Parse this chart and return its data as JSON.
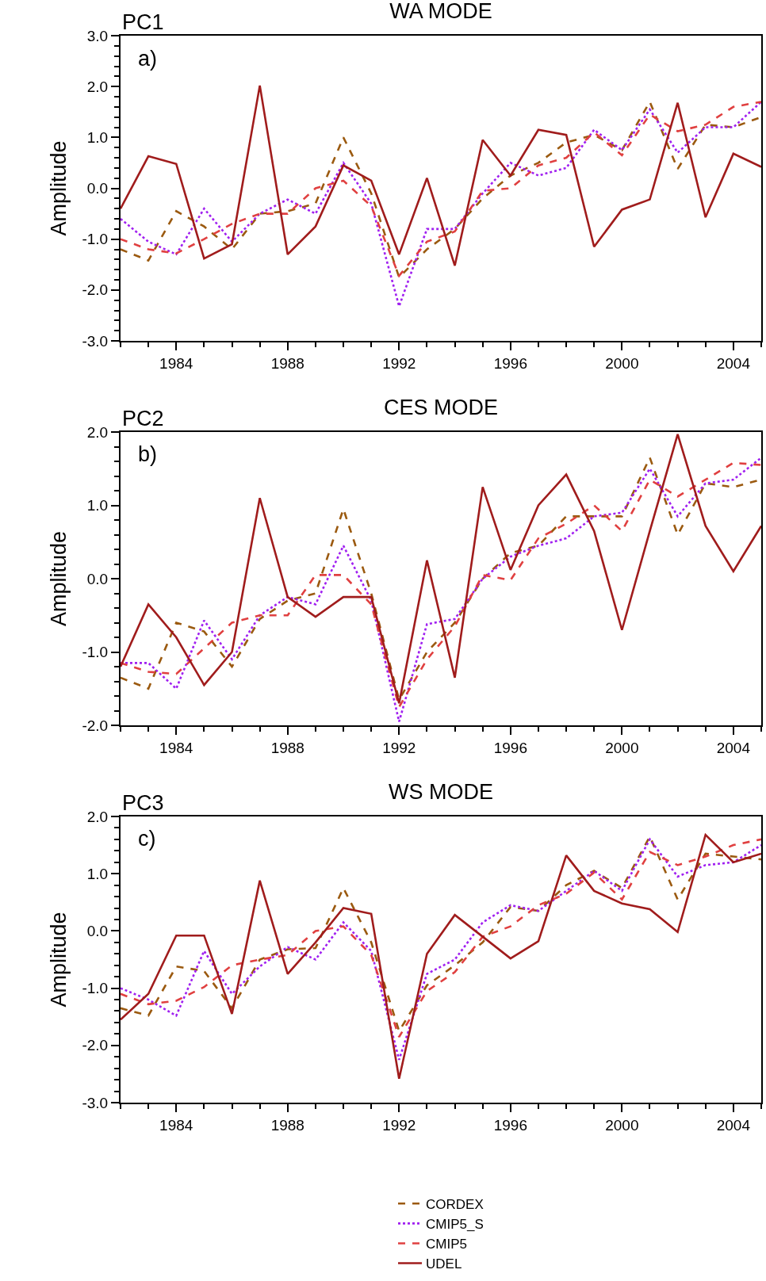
{
  "chart_data": [
    {
      "type": "line",
      "title": "WA MODE",
      "subtitle": "PC1",
      "ylabel": "Amplitude",
      "annotations": [
        "a)"
      ],
      "x": [
        1982,
        1983,
        1984,
        1985,
        1986,
        1987,
        1988,
        1989,
        1990,
        1991,
        1992,
        1993,
        1994,
        1995,
        1996,
        1997,
        1998,
        1999,
        2000,
        2001,
        2002,
        2003,
        2004,
        2005
      ],
      "xlim": [
        1982,
        2005
      ],
      "xticks": [
        1984,
        1988,
        1992,
        1996,
        2000,
        2004
      ],
      "ylim": [
        -3,
        3
      ],
      "yticks": [
        {
          "value": -3,
          "label": "-3.0"
        },
        {
          "value": -2,
          "label": "-2.0"
        },
        {
          "value": -1,
          "label": "-1.0"
        },
        {
          "value": 0,
          "label": "0.0"
        },
        {
          "value": 1,
          "label": "1.0"
        },
        {
          "value": 2,
          "label": "2.0"
        },
        {
          "value": 3,
          "label": "3.0"
        }
      ],
      "grid": false,
      "legend": false,
      "marker": "none",
      "series": [
        {
          "color": "#9b5a10",
          "line_style": "dashed",
          "values": [
            -1.2,
            -1.42,
            -0.45,
            -0.75,
            -1.2,
            -0.5,
            -0.45,
            -0.3,
            1.0,
            -0.1,
            -1.75,
            -1.2,
            -0.8,
            -0.2,
            0.25,
            0.5,
            0.9,
            1.05,
            0.75,
            1.7,
            0.38,
            1.25,
            1.2,
            1.4
          ]
        },
        {
          "color": "#a020f0",
          "line_style": "dotted",
          "values": [
            -0.6,
            -1.05,
            -1.3,
            -0.4,
            -1.05,
            -0.5,
            -0.22,
            -0.5,
            0.5,
            -0.3,
            -2.32,
            -0.8,
            -0.8,
            -0.1,
            0.5,
            0.25,
            0.4,
            1.15,
            0.75,
            1.55,
            0.7,
            1.2,
            1.2,
            1.7
          ]
        },
        {
          "color": "#e04040",
          "line_style": "dashed",
          "values": [
            -1.0,
            -1.2,
            -1.28,
            -1.0,
            -0.7,
            -0.5,
            -0.5,
            0.0,
            0.15,
            -0.35,
            -1.72,
            -1.05,
            -0.85,
            -0.05,
            0.0,
            0.45,
            0.6,
            1.1,
            0.65,
            1.45,
            1.12,
            1.25,
            1.6,
            1.7
          ]
        },
        {
          "color": "#a01c1c",
          "line_style": "solid",
          "values": [
            -0.4,
            0.63,
            0.48,
            -1.38,
            -1.1,
            2.02,
            -1.3,
            -0.75,
            0.45,
            0.15,
            -1.3,
            0.2,
            -1.52,
            0.95,
            0.25,
            1.15,
            1.05,
            -1.15,
            -0.42,
            -0.22,
            1.68,
            -0.57,
            0.68,
            0.42
          ]
        }
      ]
    },
    {
      "type": "line",
      "title": "CES MODE",
      "subtitle": "PC2",
      "ylabel": "Amplitude",
      "annotations": [
        "b)"
      ],
      "x": [
        1982,
        1983,
        1984,
        1985,
        1986,
        1987,
        1988,
        1989,
        1990,
        1991,
        1992,
        1993,
        1994,
        1995,
        1996,
        1997,
        1998,
        1999,
        2000,
        2001,
        2002,
        2003,
        2004,
        2005
      ],
      "xlim": [
        1982,
        2005
      ],
      "xticks": [
        1984,
        1988,
        1992,
        1996,
        2000,
        2004
      ],
      "ylim": [
        -2,
        2
      ],
      "yticks": [
        {
          "value": -2,
          "label": "-2.0"
        },
        {
          "value": -1,
          "label": "-1.0"
        },
        {
          "value": 0,
          "label": "0.0"
        },
        {
          "value": 1,
          "label": "1.0"
        },
        {
          "value": 2,
          "label": "2.0"
        }
      ],
      "grid": false,
      "legend": false,
      "marker": "none",
      "series": [
        {
          "color": "#9b5a10",
          "line_style": "dashed",
          "values": [
            -1.35,
            -1.5,
            -0.6,
            -0.72,
            -1.2,
            -0.55,
            -0.3,
            -0.2,
            0.95,
            -0.2,
            -1.65,
            -1.0,
            -0.6,
            0.0,
            0.35,
            0.45,
            0.85,
            0.85,
            0.85,
            1.65,
            0.6,
            1.3,
            1.25,
            1.35
          ]
        },
        {
          "color": "#a020f0",
          "line_style": "dotted",
          "values": [
            -1.15,
            -1.15,
            -1.5,
            -0.57,
            -1.1,
            -0.5,
            -0.25,
            -0.35,
            0.45,
            -0.3,
            -1.95,
            -0.62,
            -0.55,
            0.0,
            0.3,
            0.45,
            0.55,
            0.85,
            0.9,
            1.5,
            0.85,
            1.3,
            1.35,
            1.65
          ]
        },
        {
          "color": "#e04040",
          "line_style": "dashed",
          "values": [
            -1.15,
            -1.27,
            -1.3,
            -0.95,
            -0.6,
            -0.5,
            -0.5,
            0.05,
            0.05,
            -0.35,
            -1.75,
            -1.1,
            -0.65,
            0.05,
            -0.02,
            0.55,
            0.75,
            1.0,
            0.65,
            1.35,
            1.12,
            1.35,
            1.58,
            1.55
          ]
        },
        {
          "color": "#a01c1c",
          "line_style": "solid",
          "values": [
            -1.2,
            -0.35,
            -0.8,
            -1.45,
            -1.0,
            1.1,
            -0.25,
            -0.52,
            -0.25,
            -0.25,
            -1.7,
            0.25,
            -1.35,
            1.25,
            0.12,
            1.0,
            1.42,
            0.65,
            -0.7,
            0.65,
            1.97,
            0.72,
            0.1,
            0.72
          ]
        }
      ]
    },
    {
      "type": "line",
      "title": "WS MODE",
      "subtitle": "PC3",
      "ylabel": "Amplitude",
      "annotations": [
        "c)"
      ],
      "x": [
        1982,
        1983,
        1984,
        1985,
        1986,
        1987,
        1988,
        1989,
        1990,
        1991,
        1992,
        1993,
        1994,
        1995,
        1996,
        1997,
        1998,
        1999,
        2000,
        2001,
        2002,
        2003,
        2004,
        2005
      ],
      "xlim": [
        1982,
        2005
      ],
      "xticks": [
        1984,
        1988,
        1992,
        1996,
        2000,
        2004
      ],
      "ylim": [
        -3,
        2
      ],
      "yticks": [
        {
          "value": -3,
          "label": "-3.0"
        },
        {
          "value": -2,
          "label": "-2.0"
        },
        {
          "value": -1,
          "label": "-1.0"
        },
        {
          "value": 0,
          "label": "0.0"
        },
        {
          "value": 1,
          "label": "1.0"
        },
        {
          "value": 2,
          "label": "2.0"
        }
      ],
      "grid": false,
      "legend": "bottom",
      "marker": "none",
      "series": [
        {
          "name": "CORDEX",
          "color": "#9b5a10",
          "line_style": "dashed",
          "values": [
            -1.35,
            -1.48,
            -0.62,
            -0.7,
            -1.35,
            -0.5,
            -0.32,
            -0.3,
            0.75,
            -0.2,
            -1.75,
            -0.95,
            -0.6,
            -0.2,
            0.42,
            0.35,
            0.8,
            1.05,
            0.75,
            1.65,
            0.55,
            1.35,
            1.3,
            1.25
          ]
        },
        {
          "name": "CMIP5_S",
          "color": "#a020f0",
          "line_style": "dotted",
          "values": [
            -1.0,
            -1.2,
            -1.48,
            -0.35,
            -1.1,
            -0.62,
            -0.28,
            -0.5,
            0.15,
            -0.35,
            -2.25,
            -0.75,
            -0.5,
            0.15,
            0.45,
            0.35,
            0.7,
            1.05,
            0.7,
            1.6,
            0.95,
            1.15,
            1.2,
            1.5
          ]
        },
        {
          "name": "CMIP5",
          "color": "#e04040",
          "line_style": "dashed",
          "values": [
            -1.1,
            -1.28,
            -1.22,
            -0.98,
            -0.6,
            -0.5,
            -0.42,
            0.0,
            0.08,
            -0.42,
            -1.85,
            -1.05,
            -0.72,
            -0.1,
            0.08,
            0.45,
            0.65,
            1.02,
            0.55,
            1.38,
            1.15,
            1.3,
            1.5,
            1.6
          ]
        },
        {
          "name": "UDEL",
          "color": "#a01c1c",
          "line_style": "solid",
          "values": [
            -1.55,
            -1.1,
            -0.08,
            -0.08,
            -1.45,
            0.88,
            -0.75,
            -0.2,
            0.4,
            0.3,
            -2.58,
            -0.4,
            0.28,
            -0.1,
            -0.48,
            -0.18,
            1.32,
            0.7,
            0.48,
            0.38,
            -0.02,
            1.68,
            1.2,
            1.35
          ]
        }
      ]
    }
  ]
}
